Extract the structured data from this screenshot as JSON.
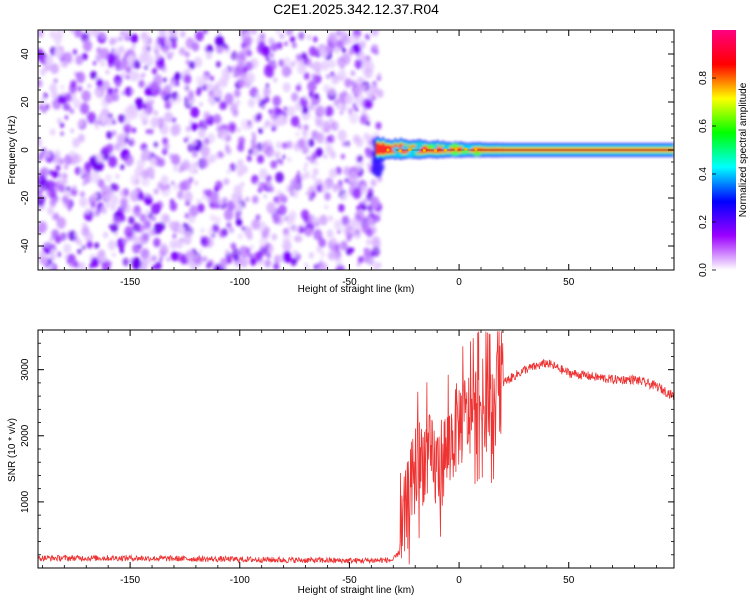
{
  "title": "C2E1.2025.342.12.37.R04",
  "chart_data": [
    {
      "type": "heatmap",
      "xlabel": "Height of straight line (km)",
      "ylabel": "Frequency (Hz)",
      "xlim": [
        -192,
        98
      ],
      "ylim": [
        -50,
        50
      ],
      "xticks": [
        -150,
        -100,
        -50,
        0,
        50
      ],
      "yticks": [
        -40,
        -20,
        0,
        20,
        40
      ],
      "noise_region_x": [
        -192,
        -36
      ],
      "signal_x": [
        -38,
        98
      ],
      "signal_center_freq": 0,
      "colorbar": {
        "label": "Normalized spectral amplitude",
        "range": [
          0,
          1
        ],
        "ticks": [
          "0.0",
          "0.2",
          "0.4",
          "0.6",
          "0.8"
        ],
        "colors": [
          "#ffffff",
          "#9b00ff",
          "#0000ff",
          "#00ffff",
          "#00ff00",
          "#ffff00",
          "#ff0000",
          "#ff0080"
        ]
      }
    },
    {
      "type": "line",
      "xlabel": "Height of straight line (km)",
      "ylabel": "SNR (10 * v/v)",
      "xlim": [
        -192,
        98
      ],
      "ylim": [
        0,
        3600
      ],
      "xticks": [
        -150,
        -100,
        -50,
        0,
        50
      ],
      "yticks": [
        1000,
        2000,
        3000
      ],
      "color": "#ee3333",
      "profile": {
        "x": [
          -192,
          -150,
          -100,
          -50,
          -30,
          -27,
          -25,
          -20,
          -15,
          -10,
          -5,
          0,
          5,
          10,
          15,
          20,
          30,
          40,
          50,
          60,
          70,
          80,
          90,
          98
        ],
        "y": [
          150,
          150,
          130,
          110,
          120,
          250,
          700,
          1500,
          1700,
          1500,
          1800,
          2200,
          2300,
          2500,
          2400,
          2800,
          3000,
          3100,
          2950,
          2900,
          2850,
          2850,
          2750,
          2600
        ]
      }
    }
  ]
}
